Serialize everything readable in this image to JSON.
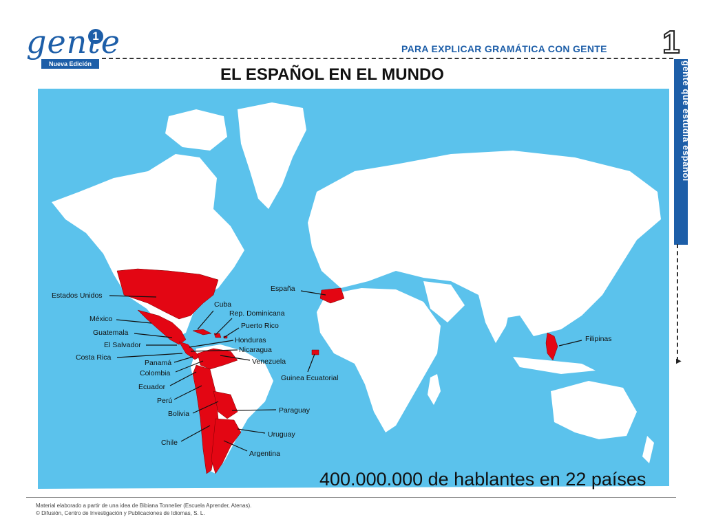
{
  "header": {
    "logo_word": "gente",
    "logo_badge": "1",
    "logo_sub": "Nueva Edición",
    "tagline": "PARA EXPLICAR GRAMÁTICA CON GENTE",
    "unit": "1",
    "side_tab": "gente que estudia español"
  },
  "title": "EL ESPAÑOL EN EL MUNDO",
  "colors": {
    "ocean": "#5bc2ec",
    "land": "#ffffff",
    "spanish": "#e30613",
    "brand": "#1d5ea8"
  },
  "countries": [
    "Estados Unidos",
    "México",
    "Guatemala",
    "El Salvador",
    "Costa Rica",
    "Panamá",
    "Colombia",
    "Ecuador",
    "Perú",
    "Bolivia",
    "Chile",
    "Cuba",
    "Rep. Dominicana",
    "Puerto Rico",
    "Honduras",
    "Nicaragua",
    "Venezuela",
    "Paraguay",
    "Uruguay",
    "Argentina",
    "España",
    "Guinea Ecuatorial",
    "Filipinas"
  ],
  "stat": "400.000.000 de hablantes en 22 países",
  "footer": {
    "line1": "Material elaborado a partir de una idea de Bibiana Tonnelier (Escuela Aprender, Atenas).",
    "line2": "© Difusión, Centro de Investigación y Publicaciones de Idiomas, S. L."
  }
}
